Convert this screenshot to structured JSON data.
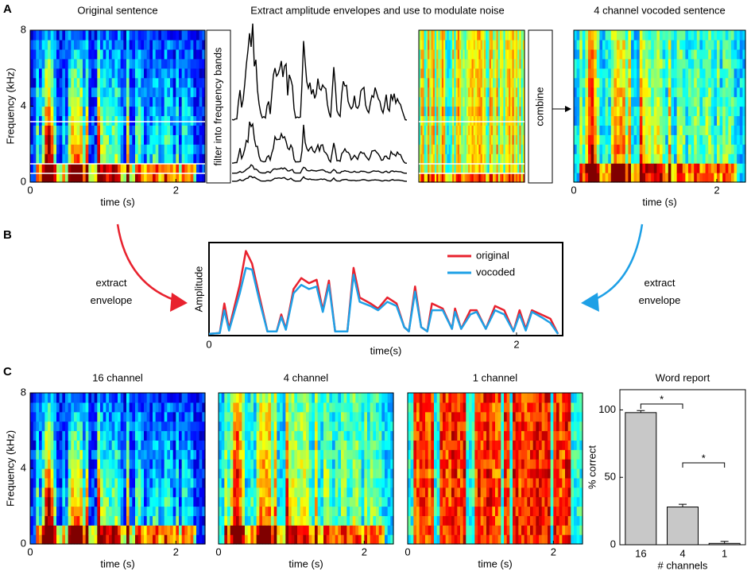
{
  "panel_labels": [
    "A",
    "B",
    "C"
  ],
  "panel_a": {
    "titles": [
      "Original sentence",
      "Extract amplitude envelopes and use to modulate noise",
      "4 channel vocoded sentence"
    ],
    "filter_label": "filter into frequency bands",
    "combine_label": "combine"
  },
  "panel_b": {
    "left_note": [
      "extract",
      "envelope"
    ],
    "right_note": [
      "extract",
      "envelope"
    ]
  },
  "panel_c": {
    "titles": [
      "16 channel",
      "4 channel",
      "1 channel"
    ]
  },
  "spectrogram_axes": {
    "y_label": "Frequency (kHz)",
    "x_label": "time (s)",
    "xlim": [
      0,
      2.4
    ],
    "ylim": [
      0,
      8
    ],
    "xticks": [
      0,
      2
    ],
    "yticks": [
      0,
      4,
      8
    ]
  },
  "chart_data": [
    {
      "type": "line",
      "y_label": "Amplitude",
      "x_label": "time(s)",
      "x": [
        0,
        0.07,
        0.1,
        0.13,
        0.2,
        0.24,
        0.28,
        0.33,
        0.38,
        0.44,
        0.47,
        0.5,
        0.55,
        0.6,
        0.65,
        0.7,
        0.74,
        0.78,
        0.82,
        0.9,
        0.94,
        0.98,
        1.05,
        1.1,
        1.16,
        1.22,
        1.27,
        1.3,
        1.34,
        1.38,
        1.42,
        1.45,
        1.52,
        1.58,
        1.6,
        1.64,
        1.7,
        1.74,
        1.8,
        1.86,
        1.92,
        1.98,
        2.02,
        2.06,
        2.1,
        2.16,
        2.22,
        2.27
      ],
      "series": [
        {
          "name": "original",
          "color": "#e8222e",
          "values": [
            0.02,
            0.03,
            0.38,
            0.08,
            0.6,
            1.0,
            0.85,
            0.45,
            0.05,
            0.05,
            0.25,
            0.08,
            0.55,
            0.68,
            0.62,
            0.66,
            0.3,
            0.65,
            0.05,
            0.05,
            0.8,
            0.45,
            0.38,
            0.32,
            0.45,
            0.38,
            0.1,
            0.05,
            0.58,
            0.1,
            0.05,
            0.38,
            0.32,
            0.08,
            0.32,
            0.08,
            0.3,
            0.3,
            0.08,
            0.35,
            0.3,
            0.05,
            0.3,
            0.08,
            0.3,
            0.25,
            0.2,
            0.02
          ]
        },
        {
          "name": "vocoded",
          "color": "#1ea0e6",
          "values": [
            0.02,
            0.03,
            0.3,
            0.06,
            0.5,
            0.8,
            0.78,
            0.4,
            0.05,
            0.05,
            0.22,
            0.07,
            0.5,
            0.6,
            0.55,
            0.58,
            0.28,
            0.6,
            0.05,
            0.05,
            0.72,
            0.4,
            0.35,
            0.3,
            0.4,
            0.35,
            0.1,
            0.05,
            0.52,
            0.1,
            0.05,
            0.3,
            0.3,
            0.08,
            0.28,
            0.08,
            0.25,
            0.28,
            0.08,
            0.3,
            0.25,
            0.05,
            0.25,
            0.06,
            0.28,
            0.22,
            0.15,
            0.02
          ]
        }
      ],
      "xlim": [
        0,
        2.3
      ],
      "ylim": [
        0,
        1.1
      ],
      "xticks": [
        0,
        2
      ],
      "legend": "upper right"
    },
    {
      "type": "bar",
      "title": "Word report",
      "y_label": "% correct",
      "x_label": "# channels",
      "categories": [
        "16",
        "4",
        "1"
      ],
      "values": [
        98,
        28,
        1
      ],
      "errors": [
        1.5,
        2,
        1.5
      ],
      "color": "#c8c8c8",
      "ylim": [
        0,
        115
      ],
      "yticks": [
        0,
        50,
        100
      ],
      "annotations": [
        "*",
        "*"
      ]
    }
  ]
}
